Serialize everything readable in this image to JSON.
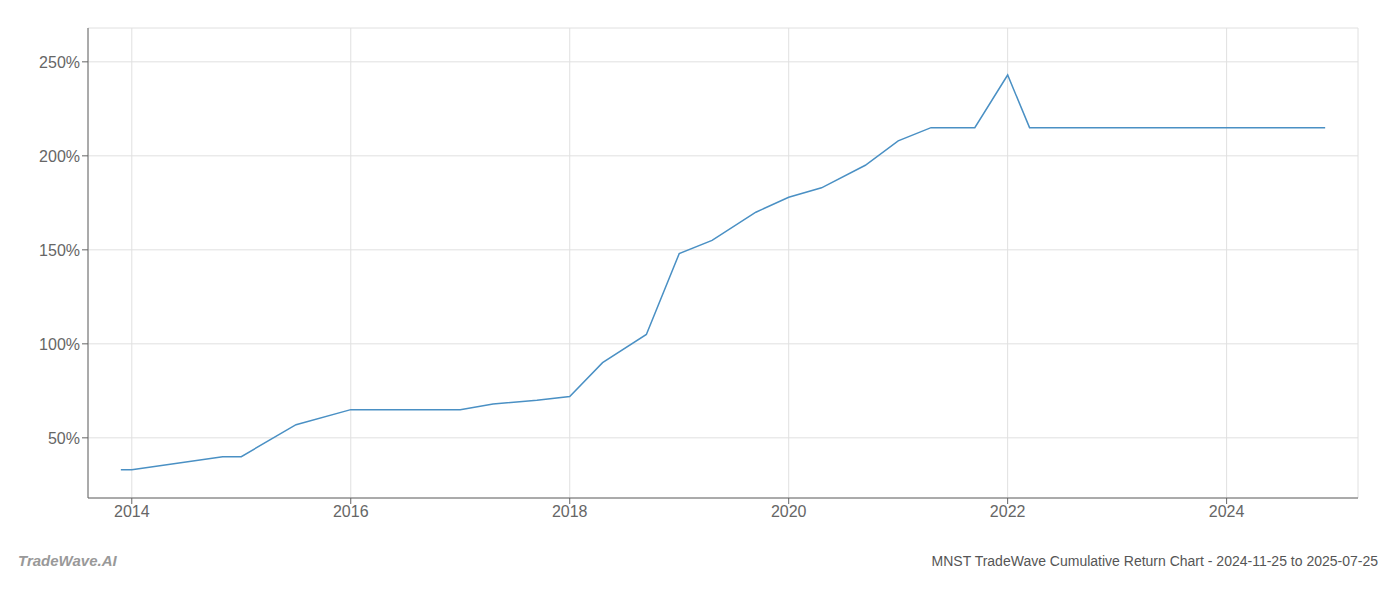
{
  "chart_data": {
    "type": "line",
    "title": "MNST TradeWave Cumulative Return Chart - 2024-11-25 to 2025-07-25",
    "annotations": [
      "TradeWave.AI"
    ],
    "x": [
      2013.9,
      2014.0,
      2014.83,
      2015.0,
      2015.5,
      2016.0,
      2016.5,
      2017.0,
      2017.3,
      2017.7,
      2018.0,
      2018.3,
      2018.7,
      2019.0,
      2019.3,
      2019.7,
      2020.0,
      2020.3,
      2020.7,
      2021.0,
      2021.3,
      2021.7,
      2022.0,
      2022.2,
      2022.7,
      2023.0,
      2023.3,
      2023.7,
      2024.0,
      2024.5,
      2024.9
    ],
    "values": [
      33,
      33,
      40,
      40,
      57,
      65,
      65,
      65,
      68,
      70,
      72,
      90,
      105,
      148,
      155,
      170,
      178,
      183,
      195,
      208,
      215,
      215,
      243,
      215,
      215,
      215,
      215,
      215,
      215,
      215,
      215
    ],
    "color": "#4a90c4",
    "xlim": [
      2013.6,
      2025.2
    ],
    "ylim": [
      18,
      268
    ],
    "xticks": [
      2014,
      2016,
      2018,
      2020,
      2022,
      2024
    ],
    "yticks": [
      {
        "value": 50,
        "label": "50%"
      },
      {
        "value": 100,
        "label": "100%"
      },
      {
        "value": 150,
        "label": "150%"
      },
      {
        "value": 200,
        "label": "200%"
      },
      {
        "value": 250,
        "label": "250%"
      }
    ],
    "grid": true
  }
}
